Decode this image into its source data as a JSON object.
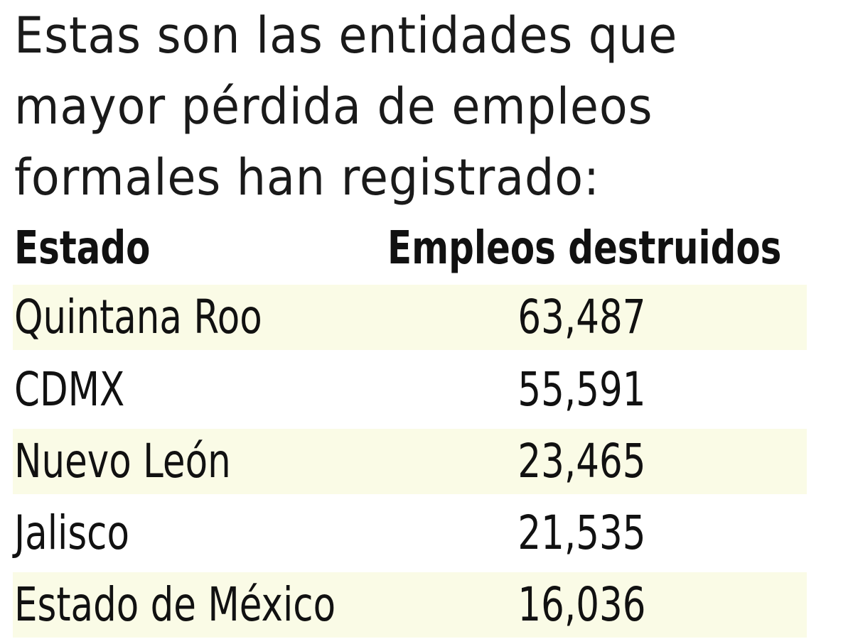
{
  "title_lines": [
    "Estas son las entidades que",
    "mayor pérdida de empleos",
    "formales han registrado:"
  ],
  "table": {
    "headers": [
      "Estado",
      "Empleos destruidos"
    ],
    "rows": [
      {
        "estado": "Quintana Roo",
        "empleos": "63,487"
      },
      {
        "estado": "CDMX",
        "empleos": "55,591"
      },
      {
        "estado": "Nuevo León",
        "empleos": "23,465"
      },
      {
        "estado": "Jalisco",
        "empleos": "21,535"
      },
      {
        "estado": "Estado de México",
        "empleos": "16,036"
      }
    ]
  },
  "colors": {
    "row_band": "#fafbe6",
    "text": "#111111"
  }
}
